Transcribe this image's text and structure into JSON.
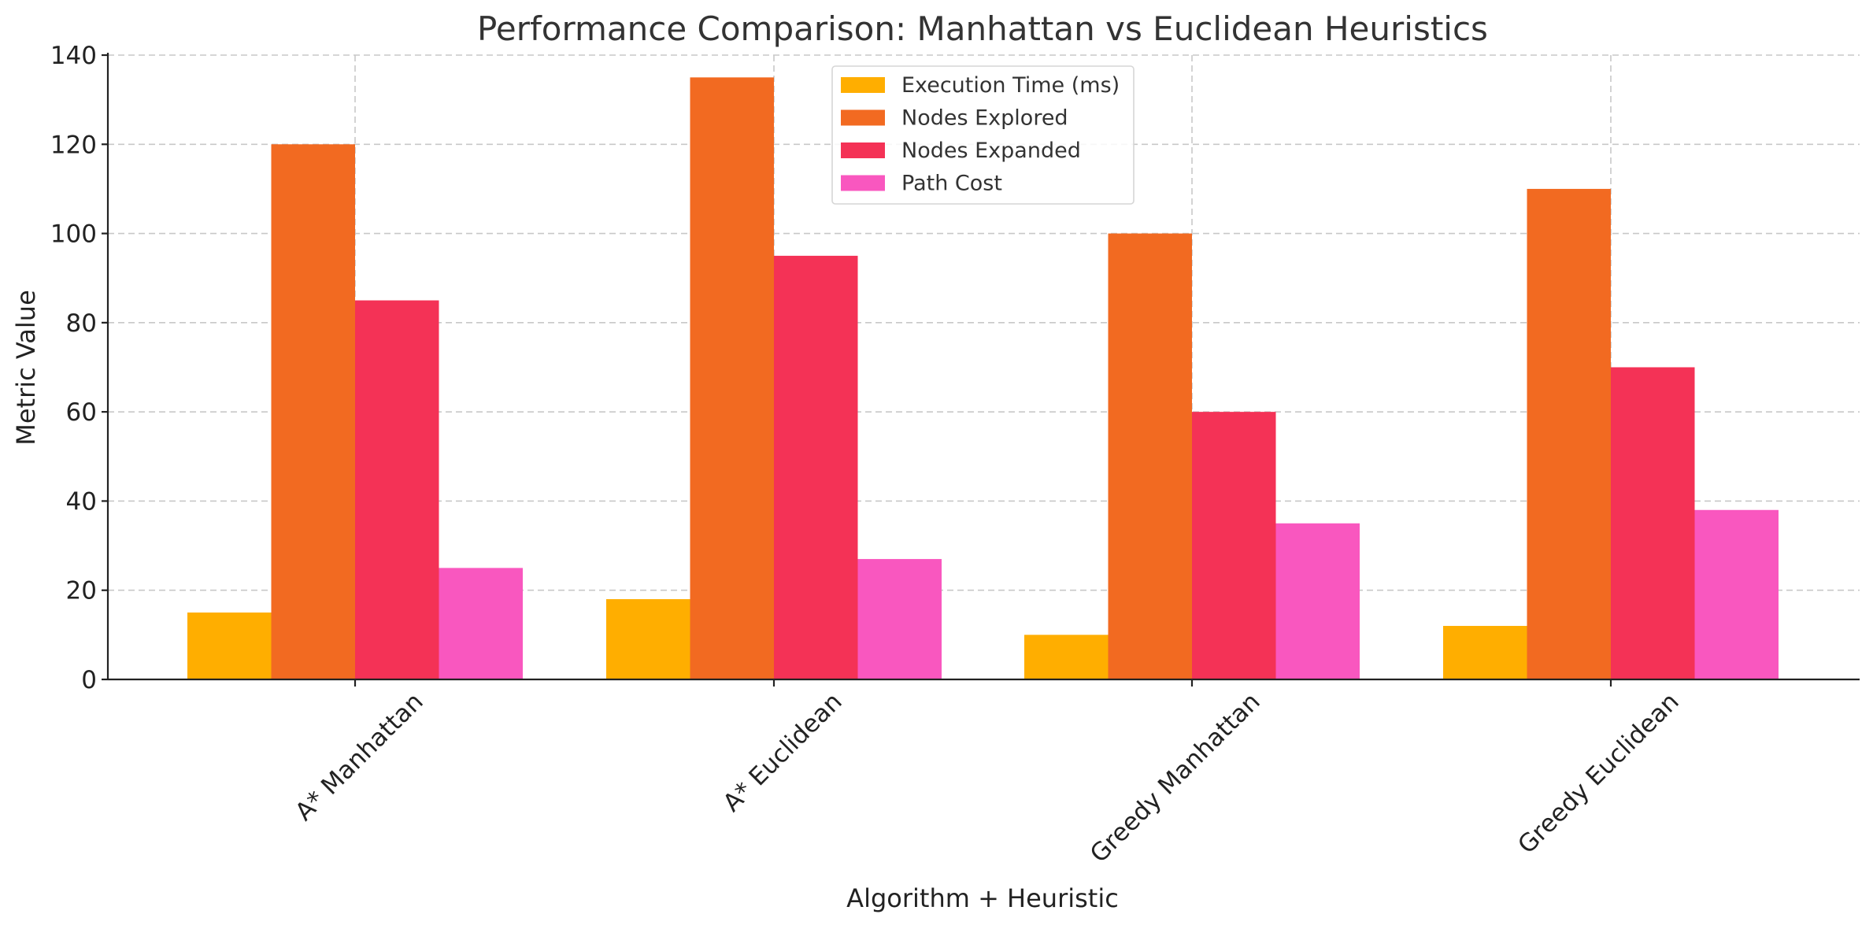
{
  "chart_data": {
    "type": "bar",
    "title": "Performance Comparison: Manhattan vs Euclidean Heuristics",
    "xlabel": "Algorithm + Heuristic",
    "ylabel": "Metric Value",
    "categories": [
      "A* Manhattan",
      "A* Euclidean",
      "Greedy Manhattan",
      "Greedy Euclidean"
    ],
    "series": [
      {
        "name": "Execution Time (ms)",
        "values": [
          15,
          18,
          10,
          12
        ],
        "color": "#FFAE00"
      },
      {
        "name": "Nodes Explored",
        "values": [
          120,
          135,
          100,
          110
        ],
        "color": "#F26A21"
      },
      {
        "name": "Nodes Expanded",
        "values": [
          85,
          95,
          60,
          70
        ],
        "color": "#F43256"
      },
      {
        "name": "Path Cost",
        "values": [
          25,
          27,
          35,
          38
        ],
        "color": "#F957BF"
      }
    ],
    "ylim": [
      0,
      140
    ],
    "yticks": [
      0,
      20,
      40,
      60,
      80,
      100,
      120,
      140
    ],
    "grid": true,
    "legend_position": "top-center"
  }
}
